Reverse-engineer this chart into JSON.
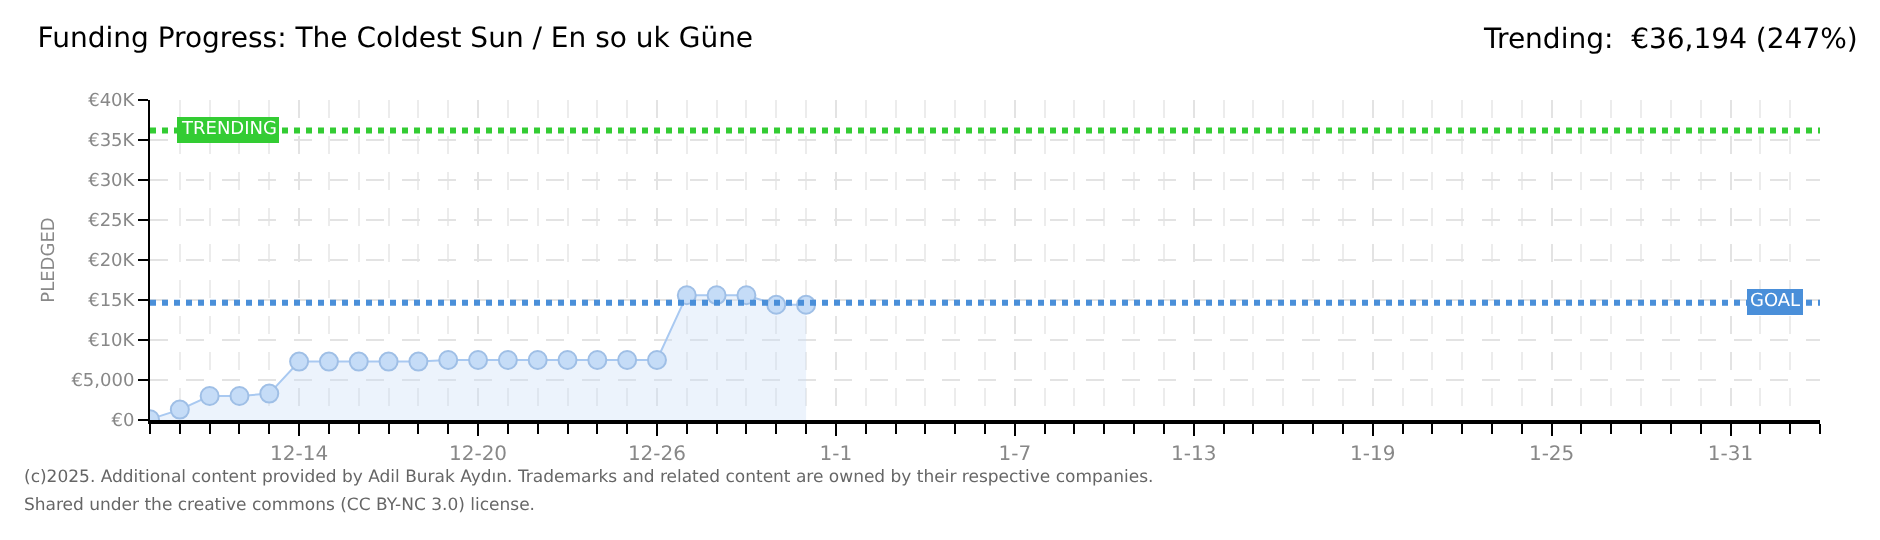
{
  "chart_data": {
    "type": "area",
    "title": "Funding Progress: The Coldest Sun / En so uk Güne",
    "subtitle": "Trending:  €36,194 (247%)",
    "ylabel": "PLEDGED",
    "x": [
      "2024-12-09",
      "2024-12-10",
      "2024-12-11",
      "2024-12-12",
      "2024-12-13",
      "2024-12-14",
      "2024-12-15",
      "2024-12-16",
      "2024-12-17",
      "2024-12-18",
      "2024-12-19",
      "2024-12-20",
      "2024-12-21",
      "2024-12-22",
      "2024-12-23",
      "2024-12-24",
      "2024-12-25",
      "2024-12-26",
      "2024-12-27",
      "2024-12-28",
      "2024-12-29",
      "2024-12-30",
      "2024-12-31"
    ],
    "series": [
      {
        "color": "#a9c9f1",
        "values": [
          100,
          1300,
          3000,
          3000,
          3300,
          7300,
          7300,
          7300,
          7300,
          7300,
          7500,
          7500,
          7500,
          7500,
          7500,
          7500,
          7500,
          7500,
          15600,
          15600,
          15600,
          14400,
          14400
        ]
      }
    ],
    "xlim": [
      "2024-12-09",
      "2025-02-03"
    ],
    "xticks": [
      {
        "value": "2024-12-14",
        "label": "12-14"
      },
      {
        "value": "2024-12-20",
        "label": "12-20"
      },
      {
        "value": "2024-12-26",
        "label": "12-26"
      },
      {
        "value": "2025-01-01",
        "label": "1-1"
      },
      {
        "value": "2025-01-07",
        "label": "1-7"
      },
      {
        "value": "2025-01-13",
        "label": "1-13"
      },
      {
        "value": "2025-01-19",
        "label": "1-19"
      },
      {
        "value": "2025-01-25",
        "label": "1-25"
      },
      {
        "value": "2025-01-31",
        "label": "1-31"
      }
    ],
    "ylim": [
      0,
      40000
    ],
    "yticks": [
      {
        "value": 0,
        "label": "€0"
      },
      {
        "value": 5000,
        "label": "€5,000"
      },
      {
        "value": 10000,
        "label": "€10K"
      },
      {
        "value": 15000,
        "label": "€15K"
      },
      {
        "value": 20000,
        "label": "€20K"
      },
      {
        "value": 25000,
        "label": "€25K"
      },
      {
        "value": 30000,
        "label": "€30K"
      },
      {
        "value": 35000,
        "label": "€35K"
      },
      {
        "value": 40000,
        "label": "€40K"
      }
    ],
    "ref_lines": [
      {
        "axis": "y",
        "value": 36194,
        "label": "TRENDING",
        "color": "#33cc33",
        "line_style": "dotted"
      },
      {
        "axis": "y",
        "value": 14650,
        "label": "GOAL",
        "color": "#4a8fd9",
        "line_style": "dotted"
      }
    ],
    "grid": true,
    "marker": "circle",
    "legend": false,
    "annotations": [
      "(c)2025. Additional content provided by Adil Burak Aydın. Trademarks and related content are owned by their respective companies.",
      "Shared under the creative commons (CC BY-NC 3.0) license."
    ]
  }
}
